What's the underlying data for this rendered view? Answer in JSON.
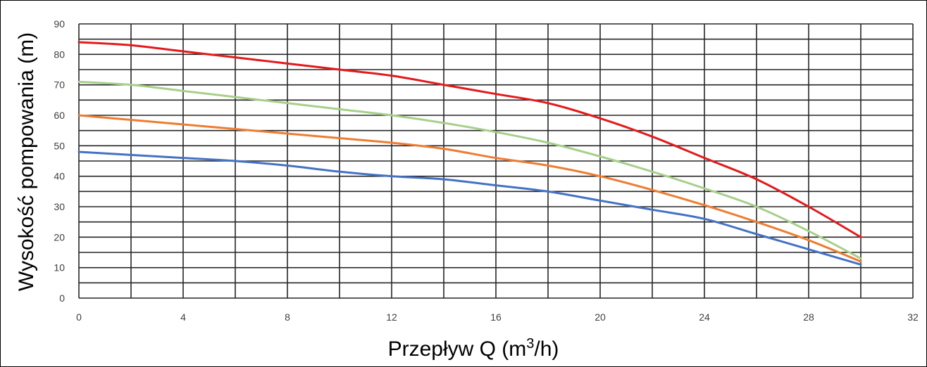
{
  "chart_data": {
    "type": "line",
    "title": "",
    "xlabel": "Przepływ Q (m",
    "xlabel_sup": "3",
    "xlabel_end": "/h)",
    "ylabel": "Wysokość pompowania (m)",
    "xlim": [
      0,
      32
    ],
    "ylim": [
      0,
      90
    ],
    "xticks": [
      0,
      4,
      8,
      12,
      16,
      20,
      24,
      28,
      32
    ],
    "yticks": [
      0,
      10,
      20,
      30,
      40,
      50,
      60,
      70,
      80,
      90
    ],
    "grid": true,
    "grid_x_step": 2,
    "grid_y_step": 5,
    "legend": "none",
    "series": [
      {
        "color": "#e31a1c",
        "x": [
          0,
          2,
          4,
          6,
          8,
          10,
          12,
          14,
          16,
          18,
          20,
          22,
          24,
          26,
          28,
          30
        ],
        "values": [
          84,
          83,
          81,
          79,
          77,
          75,
          73,
          70,
          67,
          64,
          59,
          53,
          46,
          39,
          30,
          20
        ]
      },
      {
        "color": "#a6d08a",
        "x": [
          0,
          2,
          4,
          6,
          8,
          10,
          12,
          14,
          16,
          18,
          20,
          22,
          24,
          26,
          28,
          30
        ],
        "values": [
          71,
          70,
          68,
          66,
          64,
          62,
          60,
          57.5,
          54.5,
          51,
          46.5,
          41.5,
          36,
          30,
          22,
          13
        ]
      },
      {
        "color": "#ed7d31",
        "x": [
          0,
          2,
          4,
          6,
          8,
          10,
          12,
          14,
          16,
          18,
          20,
          22,
          24,
          26,
          28,
          30
        ],
        "values": [
          60,
          58.5,
          57,
          55.5,
          54,
          52.5,
          51,
          49,
          46,
          43.5,
          40,
          35.5,
          30.5,
          25,
          19,
          12
        ]
      },
      {
        "color": "#4472c4",
        "x": [
          0,
          2,
          4,
          6,
          8,
          10,
          12,
          14,
          16,
          18,
          20,
          22,
          24,
          26,
          28,
          30
        ],
        "values": [
          48,
          47,
          46,
          45,
          43.5,
          41.5,
          40,
          39,
          37,
          35,
          32,
          29,
          26,
          21,
          16,
          11
        ]
      }
    ]
  }
}
